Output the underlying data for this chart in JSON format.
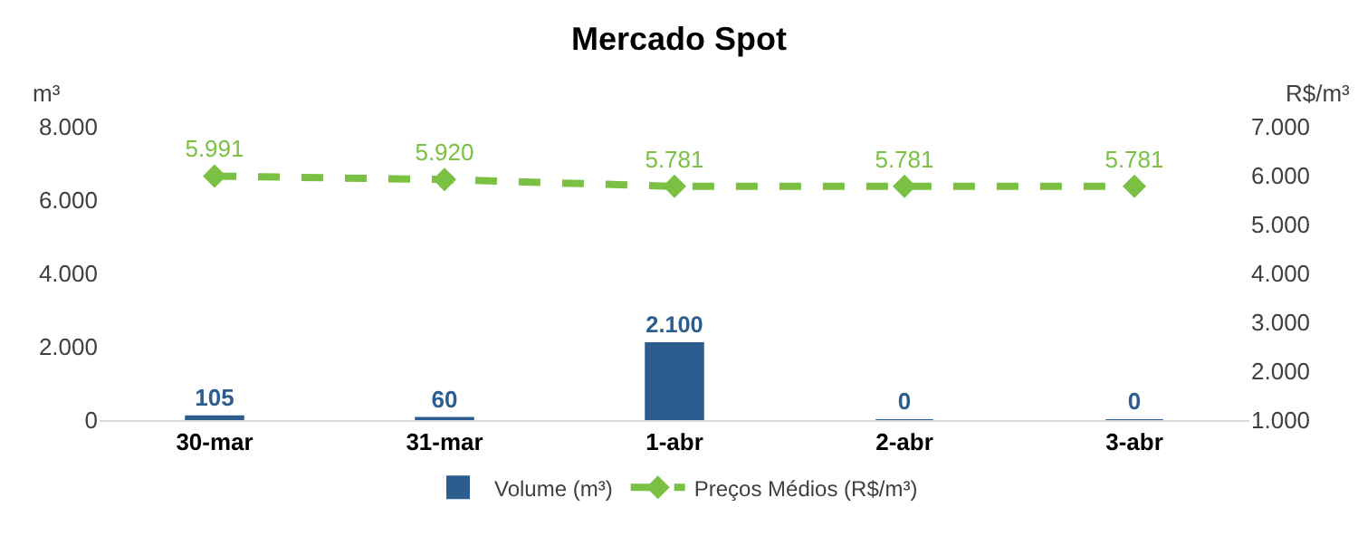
{
  "chart_data": {
    "type": "bar",
    "title": "Mercado Spot",
    "ylabel": "m³",
    "y2label": "R$/m³",
    "categories": [
      "30-mar",
      "31-mar",
      "1-abr",
      "2-abr",
      "3-abr"
    ],
    "series": [
      {
        "name": "Volume (m³)",
        "color": "#2d5c8e",
        "values": [
          105,
          60,
          2100,
          0,
          0
        ],
        "value_labels": [
          "105",
          "60",
          "2.100",
          "0",
          "0"
        ]
      },
      {
        "name": "Preços Médios (R$/m³)",
        "type": "line",
        "axis": "y2",
        "color": "#7ac143",
        "line_style": "dashed",
        "marker": "diamond",
        "values": [
          5991,
          5920,
          5781,
          5781,
          5781
        ],
        "value_labels": [
          "5.991",
          "5.920",
          "5.781",
          "5.781",
          "5.781"
        ]
      }
    ],
    "ylim": [
      0,
      8000
    ],
    "yticks": [
      {
        "value": 0,
        "label": "0"
      },
      {
        "value": 2000,
        "label": "2.000"
      },
      {
        "value": 4000,
        "label": "4.000"
      },
      {
        "value": 6000,
        "label": "6.000"
      },
      {
        "value": 8000,
        "label": "8.000"
      }
    ],
    "y2lim": [
      1000,
      7000
    ],
    "y2ticks": [
      {
        "value": 1000,
        "label": "1.000"
      },
      {
        "value": 2000,
        "label": "2.000"
      },
      {
        "value": 3000,
        "label": "3.000"
      },
      {
        "value": 4000,
        "label": "4.000"
      },
      {
        "value": 5000,
        "label": "5.000"
      },
      {
        "value": 6000,
        "label": "6.000"
      },
      {
        "value": 7000,
        "label": "7.000"
      }
    ],
    "legend": "bottom"
  }
}
